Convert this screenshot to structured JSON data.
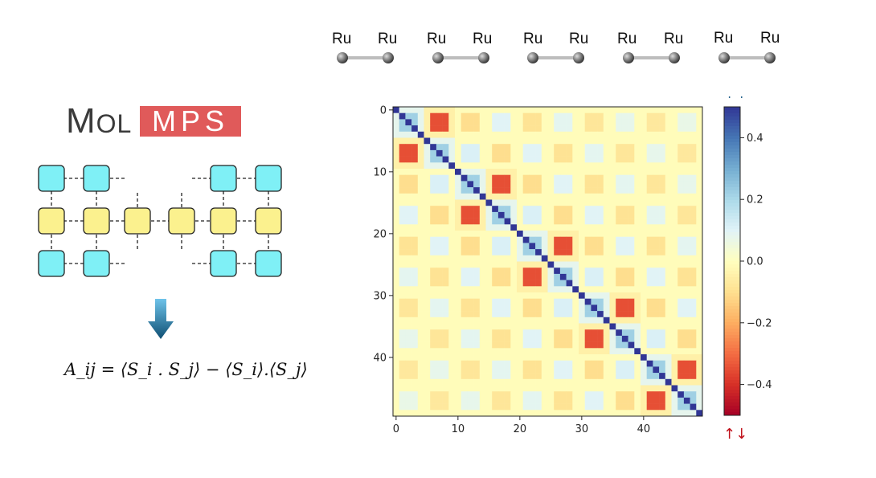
{
  "logo": {
    "mol_first": "M",
    "mol_rest": "OL",
    "mps": "MPS"
  },
  "formula": "A_ij = ⟨S_i . S_j⟩ − ⟨S_i⟩.⟨S_j⟩",
  "ru_labels": [
    "Ru",
    "Ru",
    "Ru",
    "Ru",
    "Ru",
    "Ru",
    "Ru",
    "Ru",
    "Ru",
    "Ru"
  ],
  "colorbar": {
    "top_symbol": "↑↑",
    "bottom_symbol": "↑↓",
    "top_color": "#1f5f8b",
    "bottom_color": "#c0101a",
    "ticks": [
      "0.4",
      "0.2",
      "0.0",
      "−0.2",
      "−0.4"
    ],
    "vmin": -0.5,
    "vmax": 0.5
  },
  "chart_data": {
    "type": "heatmap",
    "size": 50,
    "xticks": [
      "0",
      "10",
      "20",
      "30",
      "40"
    ],
    "yticks": [
      "0",
      "10",
      "20",
      "30",
      "40"
    ],
    "xtick_values": [
      0,
      10,
      20,
      30,
      40
    ],
    "ytick_values": [
      0,
      10,
      20,
      30,
      40
    ],
    "vmin": -0.5,
    "vmax": 0.5,
    "colormap": "RdYlBu",
    "diagonal_value": 0.5,
    "pair_blocks": [
      [
        0,
        1
      ],
      [
        2,
        3
      ],
      [
        4,
        5
      ],
      [
        6,
        7
      ],
      [
        8,
        9
      ]
    ],
    "pair_value": -0.35
  }
}
